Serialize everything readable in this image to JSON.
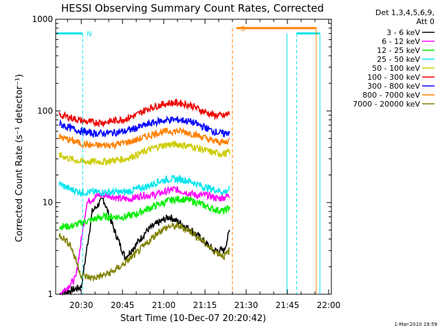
{
  "chart_data": {
    "type": "line",
    "title": "HESSI Observing Summary Count Rates, Corrected",
    "xlabel": "Start Time (10-Dec-07 20:20:42)",
    "ylabel": "Corrected Count Rate (s⁻¹ detector⁻¹)",
    "y_scale": "log",
    "ylim": [
      1,
      1000
    ],
    "xlim": [
      "20:20:42",
      "22:01:00"
    ],
    "x_ticks": [
      "20:30",
      "20:45",
      "21:00",
      "21:15",
      "21:30",
      "21:45",
      "22:00"
    ],
    "y_ticks": [
      "1",
      "10",
      "100",
      "1000"
    ],
    "legend_header": [
      "Det 1,3,4,5,6,9,",
      "Att 0"
    ],
    "legend_position": "right",
    "footer_date": "1-Mar-2010 19:59",
    "annotations": [
      {
        "text": "N",
        "color": "#00e5ee",
        "x": "20:30:30",
        "description": "night"
      },
      {
        "text": "S",
        "color": "#ff8000",
        "x": "21:26:30",
        "description": "SAA"
      }
    ],
    "markers": {
      "night": {
        "color": "#00e5ee",
        "level": 700,
        "intervals": [
          [
            "20:20:42",
            "20:30:30"
          ],
          [
            "21:48:20",
            "21:56:50"
          ]
        ],
        "lines": [
          "20:30:30",
          "21:44:50",
          "21:48:20",
          "21:56:50"
        ]
      },
      "saa": {
        "color": "#ff8000",
        "level": 800,
        "intervals": [
          [
            "21:26:30",
            "21:55:30"
          ]
        ],
        "lines": [
          "21:25:00",
          "21:55:30"
        ]
      }
    },
    "series": [
      {
        "name": "3 - 6 keV",
        "color": "#000000",
        "x": [
          "20:22",
          "20:30",
          "20:34",
          "20:38",
          "20:42",
          "20:46",
          "20:50",
          "20:54",
          "20:58",
          "21:02",
          "21:06",
          "21:10",
          "21:14",
          "21:18",
          "21:22",
          "21:24"
        ],
        "y": [
          1.0,
          1.2,
          8,
          11,
          5,
          2.5,
          3.5,
          5,
          6,
          7,
          6,
          5,
          4,
          3,
          3,
          5
        ]
      },
      {
        "name": "6 - 12 keV",
        "color": "#ff00ff",
        "x": [
          "20:22",
          "20:25",
          "20:28",
          "20:32",
          "20:36",
          "20:40",
          "20:44",
          "20:48",
          "20:52",
          "20:56",
          "21:00",
          "21:04",
          "21:08",
          "21:12",
          "21:16",
          "21:20",
          "21:24"
        ],
        "y": [
          1.0,
          1.2,
          1.5,
          10,
          12,
          12,
          11,
          11,
          12,
          12,
          13,
          14,
          13,
          12,
          12,
          11,
          12
        ]
      },
      {
        "name": "12 - 25 keV",
        "color": "#00ee00",
        "x": [
          "20:22",
          "20:26",
          "20:30",
          "20:34",
          "20:38",
          "20:42",
          "20:46",
          "20:50",
          "20:54",
          "20:58",
          "21:02",
          "21:06",
          "21:10",
          "21:14",
          "21:18",
          "21:22",
          "21:24"
        ],
        "y": [
          5.5,
          5.5,
          6,
          6.5,
          7,
          7,
          7,
          7.5,
          8.5,
          9.5,
          10.5,
          11,
          10.5,
          9.5,
          8.5,
          8,
          9
        ]
      },
      {
        "name": "25 - 50 keV",
        "color": "#00e5ee",
        "x": [
          "20:22",
          "20:26",
          "20:30",
          "20:34",
          "20:38",
          "20:42",
          "20:46",
          "20:50",
          "20:54",
          "20:58",
          "21:02",
          "21:06",
          "21:10",
          "21:14",
          "21:18",
          "21:22",
          "21:24"
        ],
        "y": [
          16,
          14,
          13,
          13,
          13,
          13,
          13,
          14,
          15,
          17,
          18,
          18,
          17,
          15,
          14,
          13,
          14
        ]
      },
      {
        "name": "50 - 100 keV",
        "color": "#cccc00",
        "x": [
          "20:22",
          "20:26",
          "20:30",
          "20:34",
          "20:38",
          "20:42",
          "20:46",
          "20:50",
          "20:54",
          "20:58",
          "21:02",
          "21:06",
          "21:10",
          "21:14",
          "21:18",
          "21:22",
          "21:24"
        ],
        "y": [
          33,
          30,
          28,
          28,
          28,
          29,
          30,
          33,
          37,
          41,
          43,
          43,
          41,
          38,
          35,
          34,
          36
        ]
      },
      {
        "name": "100 - 300 keV",
        "color": "#ee0000",
        "x": [
          "20:22",
          "20:26",
          "20:30",
          "20:34",
          "20:38",
          "20:42",
          "20:46",
          "20:50",
          "20:54",
          "20:58",
          "21:02",
          "21:06",
          "21:10",
          "21:14",
          "21:18",
          "21:22",
          "21:24"
        ],
        "y": [
          90,
          85,
          78,
          75,
          75,
          78,
          82,
          90,
          105,
          115,
          122,
          122,
          115,
          100,
          90,
          88,
          95
        ]
      },
      {
        "name": "300 - 800 keV",
        "color": "#0000ff",
        "x": [
          "20:22",
          "20:26",
          "20:30",
          "20:34",
          "20:38",
          "20:42",
          "20:46",
          "20:50",
          "20:54",
          "20:58",
          "21:02",
          "21:06",
          "21:10",
          "21:14",
          "21:18",
          "21:22",
          "21:24"
        ],
        "y": [
          72,
          65,
          60,
          57,
          57,
          58,
          60,
          65,
          71,
          77,
          80,
          80,
          76,
          68,
          60,
          56,
          60
        ]
      },
      {
        "name": "800 - 7000 keV",
        "color": "#ff8000",
        "x": [
          "20:22",
          "20:26",
          "20:30",
          "20:34",
          "20:38",
          "20:42",
          "20:46",
          "20:50",
          "20:54",
          "20:58",
          "21:02",
          "21:06",
          "21:10",
          "21:14",
          "21:18",
          "21:22",
          "21:24"
        ],
        "y": [
          52,
          48,
          44,
          42,
          42,
          43,
          45,
          48,
          53,
          58,
          60,
          60,
          57,
          52,
          47,
          45,
          48
        ]
      },
      {
        "name": "7000 - 20000 keV",
        "color": "#808000",
        "x": [
          "20:22",
          "20:26",
          "20:30",
          "20:34",
          "20:38",
          "20:42",
          "20:46",
          "20:50",
          "20:54",
          "20:58",
          "21:02",
          "21:06",
          "21:10",
          "21:14",
          "21:18",
          "21:22",
          "21:24"
        ],
        "y": [
          4.5,
          3.5,
          1.6,
          1.5,
          1.6,
          1.8,
          2.2,
          2.8,
          3.6,
          4.8,
          5.5,
          5.5,
          4.8,
          3.8,
          3.0,
          2.6,
          3.0
        ]
      }
    ]
  }
}
